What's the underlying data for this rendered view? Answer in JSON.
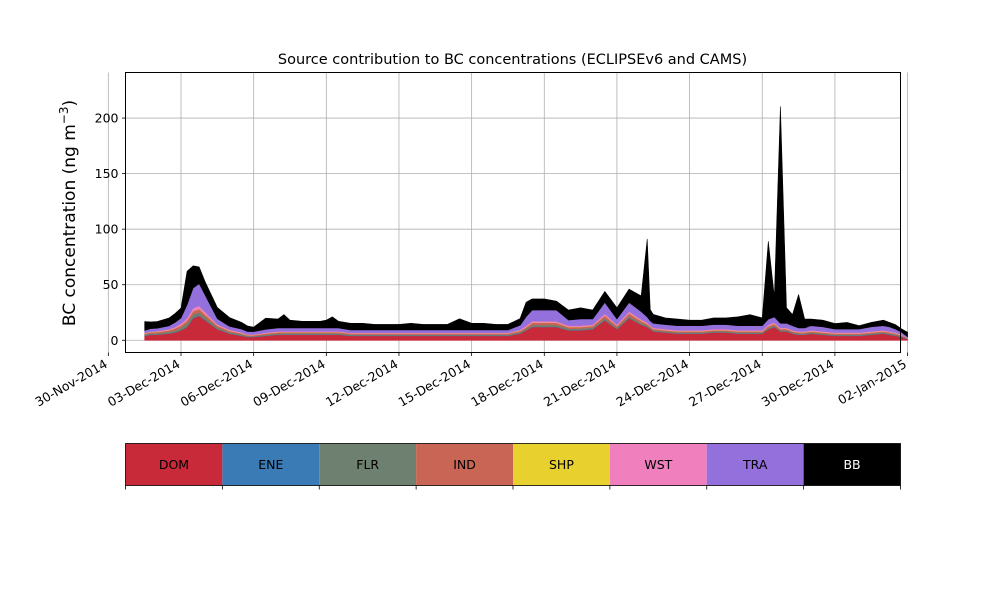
{
  "chart_data": {
    "type": "area",
    "title": "Source contribution to BC concentrations (ECLIPSEv6 and CAMS)",
    "ylabel_main": "BC concentration (ng m",
    "ylabel_sup": "−3",
    "ylabel_close": ")",
    "xlabel": "",
    "x_axis": "date",
    "xlim": [
      "2014-11-30T17:00",
      "2015-01-01T17:00"
    ],
    "ylim": [
      -11,
      241
    ],
    "grid": true,
    "x_ticks": [
      "2014-11-30",
      "2014-12-03",
      "2014-12-06",
      "2014-12-09",
      "2014-12-12",
      "2014-12-15",
      "2014-12-18",
      "2014-12-21",
      "2014-12-24",
      "2014-12-27",
      "2014-12-30",
      "2015-01-02"
    ],
    "x_tick_labels": [
      "30-Nov-2014",
      "03-Dec-2014",
      "06-Dec-2014",
      "09-Dec-2014",
      "12-Dec-2014",
      "15-Dec-2014",
      "18-Dec-2014",
      "21-Dec-2014",
      "24-Dec-2014",
      "27-Dec-2014",
      "30-Dec-2014",
      "02-Jan-2015"
    ],
    "y_ticks": [
      0,
      50,
      100,
      150,
      200
    ],
    "y_tick_labels": [
      "0",
      "50",
      "100",
      "150",
      "200"
    ],
    "x": [
      "2014-12-01T12:00",
      "2014-12-01T18:00",
      "2014-12-02T00:00",
      "2014-12-02T12:00",
      "2014-12-02T18:00",
      "2014-12-03T00:00",
      "2014-12-03T06:00",
      "2014-12-03T12:00",
      "2014-12-03T18:00",
      "2014-12-04T00:00",
      "2014-12-04T12:00",
      "2014-12-05T00:00",
      "2014-12-05T12:00",
      "2014-12-05T18:00",
      "2014-12-06T00:00",
      "2014-12-06T12:00",
      "2014-12-07T00:00",
      "2014-12-07T06:00",
      "2014-12-07T12:00",
      "2014-12-08T00:00",
      "2014-12-08T12:00",
      "2014-12-08T18:00",
      "2014-12-09T00:00",
      "2014-12-09T06:00",
      "2014-12-09T12:00",
      "2014-12-10T00:00",
      "2014-12-10T12:00",
      "2014-12-11T00:00",
      "2014-12-11T12:00",
      "2014-12-12T00:00",
      "2014-12-12T12:00",
      "2014-12-13T00:00",
      "2014-12-13T12:00",
      "2014-12-14T00:00",
      "2014-12-14T12:00",
      "2014-12-15T00:00",
      "2014-12-15T12:00",
      "2014-12-16T00:00",
      "2014-12-16T12:00",
      "2014-12-17T00:00",
      "2014-12-17T06:00",
      "2014-12-17T12:00",
      "2014-12-18T00:00",
      "2014-12-18T12:00",
      "2014-12-19T00:00",
      "2014-12-19T12:00",
      "2014-12-20T00:00",
      "2014-12-20T12:00",
      "2014-12-21T00:00",
      "2014-12-21T12:00",
      "2014-12-22T00:00",
      "2014-12-22T06:00",
      "2014-12-22T09:00",
      "2014-12-22T12:00",
      "2014-12-23T00:00",
      "2014-12-23T12:00",
      "2014-12-24T00:00",
      "2014-12-24T12:00",
      "2014-12-25T00:00",
      "2014-12-25T12:00",
      "2014-12-26T00:00",
      "2014-12-26T12:00",
      "2014-12-27T00:00",
      "2014-12-27T06:00",
      "2014-12-27T12:00",
      "2014-12-27T18:00",
      "2014-12-28T00:00",
      "2014-12-28T06:00",
      "2014-12-28T12:00",
      "2014-12-28T18:00",
      "2014-12-29T00:00",
      "2014-12-29T12:00",
      "2014-12-30T00:00",
      "2014-12-30T12:00",
      "2014-12-31T00:00",
      "2014-12-31T12:00",
      "2015-01-01T00:00",
      "2015-01-01T06:00",
      "2015-01-01T12:00",
      "2015-01-01T18:00",
      "2015-01-02T00:00"
    ],
    "series": [
      {
        "name": "DOM",
        "color": "#c82a3a",
        "values": [
          4,
          5,
          5,
          6,
          7,
          9,
          12,
          20,
          22,
          18,
          10,
          6,
          4,
          3,
          3,
          4,
          5,
          5,
          5,
          5,
          5,
          5,
          5,
          5,
          5,
          4,
          4,
          4,
          4,
          4,
          4,
          4,
          4,
          4,
          4,
          4,
          4,
          4,
          4,
          6,
          9,
          12,
          12,
          12,
          9,
          9,
          10,
          18,
          10,
          20,
          14,
          12,
          10,
          8,
          7,
          6,
          6,
          6,
          7,
          7,
          6,
          6,
          6,
          10,
          12,
          8,
          8,
          6,
          5,
          5,
          6,
          5,
          4,
          4,
          4,
          5,
          6,
          5,
          4,
          3,
          1
        ]
      },
      {
        "name": "ENE",
        "color": "#3a7bb5",
        "values": [
          0.3,
          0.3,
          0.3,
          0.3,
          0.3,
          0.3,
          0.3,
          0.3,
          0.3,
          0.3,
          0.3,
          0.3,
          0.3,
          0.3,
          0.3,
          0.3,
          0.3,
          0.3,
          0.3,
          0.3,
          0.3,
          0.3,
          0.3,
          0.3,
          0.3,
          0.3,
          0.3,
          0.3,
          0.3,
          0.3,
          0.3,
          0.3,
          0.3,
          0.3,
          0.3,
          0.3,
          0.3,
          0.3,
          0.3,
          0.3,
          0.3,
          0.3,
          0.3,
          0.3,
          0.3,
          0.3,
          0.3,
          0.3,
          0.3,
          0.3,
          0.3,
          0.3,
          0.3,
          0.3,
          0.3,
          0.3,
          0.3,
          0.3,
          0.3,
          0.3,
          0.3,
          0.3,
          0.3,
          0.3,
          0.3,
          0.3,
          0.3,
          0.3,
          0.3,
          0.3,
          0.3,
          0.3,
          0.3,
          0.3,
          0.3,
          0.3,
          0.3,
          0.3,
          0.3,
          0.3,
          0.3
        ]
      },
      {
        "name": "FLR",
        "color": "#6e8070",
        "values": [
          0.8,
          1,
          1,
          1.2,
          1.5,
          2,
          3,
          3,
          3,
          2.5,
          1.5,
          1,
          1,
          0.5,
          0.5,
          0.8,
          1,
          1,
          1,
          1,
          1,
          1,
          1,
          1,
          1,
          0.8,
          0.8,
          0.8,
          0.8,
          0.8,
          0.8,
          0.8,
          0.8,
          0.8,
          0.8,
          0.8,
          0.8,
          0.8,
          0.8,
          1,
          1.2,
          1.5,
          1.5,
          1.5,
          1.2,
          1.2,
          1.2,
          1.5,
          1.2,
          1.5,
          1.2,
          1,
          1,
          0.8,
          0.8,
          0.8,
          0.8,
          0.8,
          0.8,
          0.8,
          0.8,
          0.8,
          0.8,
          1,
          1,
          0.8,
          0.8,
          0.8,
          0.8,
          0.8,
          0.8,
          0.8,
          0.8,
          0.8,
          0.8,
          0.8,
          0.8,
          0.8,
          0.8,
          0.5,
          0.3
        ]
      },
      {
        "name": "IND",
        "color": "#c96555",
        "values": [
          1,
          1,
          1.2,
          1.5,
          2,
          2,
          2.5,
          3,
          3,
          2.5,
          1.5,
          1.2,
          1,
          0.8,
          0.8,
          1,
          1,
          1,
          1,
          1,
          1,
          1,
          1,
          1,
          1,
          1,
          1,
          1,
          1,
          1,
          1,
          1,
          1,
          1,
          1,
          1,
          1,
          1,
          1,
          1.2,
          1.5,
          2,
          2,
          2,
          1.5,
          1.5,
          1.5,
          2.5,
          1.5,
          2.5,
          2,
          1.5,
          1.2,
          1.2,
          1,
          1,
          1,
          1,
          1,
          1,
          1,
          1,
          1,
          1.5,
          1.5,
          1.2,
          1.2,
          1,
          1,
          1,
          1,
          1,
          1,
          1,
          1,
          1,
          1,
          1,
          1,
          0.8,
          0.3
        ]
      },
      {
        "name": "SHP",
        "color": "#e8d02f",
        "values": [
          0.2,
          0.2,
          0.2,
          0.2,
          0.2,
          0.2,
          0.2,
          0.2,
          0.2,
          0.2,
          0.2,
          0.2,
          0.2,
          0.2,
          0.2,
          0.2,
          0.2,
          0.2,
          0.2,
          0.2,
          0.2,
          0.2,
          0.2,
          0.2,
          0.2,
          0.2,
          0.2,
          0.2,
          0.2,
          0.2,
          0.2,
          0.2,
          0.2,
          0.2,
          0.2,
          0.2,
          0.2,
          0.2,
          0.2,
          0.2,
          0.2,
          0.2,
          0.2,
          0.2,
          0.2,
          0.2,
          0.2,
          0.2,
          0.2,
          0.2,
          0.2,
          0.2,
          0.2,
          0.2,
          0.2,
          0.2,
          0.2,
          0.2,
          0.2,
          0.2,
          0.2,
          0.2,
          0.2,
          0.2,
          0.2,
          0.2,
          0.2,
          0.2,
          0.2,
          0.2,
          0.2,
          0.2,
          0.2,
          0.2,
          0.2,
          0.2,
          0.2,
          0.2,
          0.2,
          0.2,
          0.1
        ]
      },
      {
        "name": "WST",
        "color": "#f07fbd",
        "values": [
          0.5,
          0.5,
          0.6,
          0.8,
          1,
          1.5,
          2,
          2.5,
          2.5,
          2,
          1,
          0.8,
          0.6,
          0.5,
          0.5,
          0.6,
          0.6,
          0.6,
          0.6,
          0.6,
          0.6,
          0.6,
          0.6,
          0.6,
          0.6,
          0.5,
          0.5,
          0.5,
          0.5,
          0.5,
          0.5,
          0.5,
          0.5,
          0.5,
          0.5,
          0.5,
          0.5,
          0.5,
          0.5,
          0.8,
          1,
          1.2,
          1.2,
          1.2,
          1,
          1,
          1,
          1.5,
          1,
          1.5,
          1.2,
          1,
          0.8,
          0.8,
          0.8,
          0.8,
          0.8,
          0.8,
          0.8,
          0.8,
          0.8,
          0.8,
          0.8,
          1,
          1,
          0.8,
          0.8,
          0.8,
          0.8,
          0.8,
          0.8,
          0.8,
          0.8,
          0.8,
          0.8,
          0.8,
          0.8,
          0.8,
          0.8,
          0.5,
          0.2
        ]
      },
      {
        "name": "TRA",
        "color": "#9370db",
        "values": [
          2,
          2.5,
          2.5,
          3,
          4,
          5,
          12,
          18,
          20,
          15,
          5,
          3,
          3,
          2.5,
          2.5,
          3,
          3,
          3,
          3,
          3,
          3,
          3,
          3,
          3,
          3,
          2.5,
          2.5,
          2.5,
          2.5,
          2.5,
          2.5,
          2.5,
          2.5,
          2.5,
          2.5,
          2.5,
          2.5,
          2.5,
          2.5,
          4,
          8,
          10,
          10,
          10,
          5,
          6,
          5,
          10,
          5,
          8,
          7,
          5,
          4,
          4,
          4,
          4,
          4,
          4,
          4,
          4,
          4,
          4,
          4,
          5,
          5,
          4,
          4,
          4,
          3,
          3,
          4,
          4,
          3,
          3,
          3,
          4,
          4,
          4,
          3,
          2,
          1
        ]
      },
      {
        "name": "BB",
        "color": "#000000",
        "values": [
          8,
          6,
          6,
          7,
          8,
          9,
          30,
          20,
          15,
          12,
          10,
          8,
          6,
          5,
          4,
          10,
          8,
          12,
          7,
          6,
          6,
          6,
          7,
          10,
          6,
          6,
          6,
          5,
          5,
          5,
          6,
          5,
          5,
          5,
          10,
          6,
          6,
          5,
          5,
          6,
          13,
          10,
          10,
          8,
          9,
          10,
          8,
          10,
          10,
          12,
          14,
          70,
          10,
          8,
          6,
          6,
          5,
          5,
          6,
          6,
          8,
          10,
          7,
          70,
          18,
          195,
          14,
          10,
          30,
          8,
          6,
          6,
          5,
          6,
          3,
          4,
          5,
          4,
          4,
          3,
          4
        ]
      }
    ],
    "legend_placement": "below chart, horizontal color bar"
  }
}
